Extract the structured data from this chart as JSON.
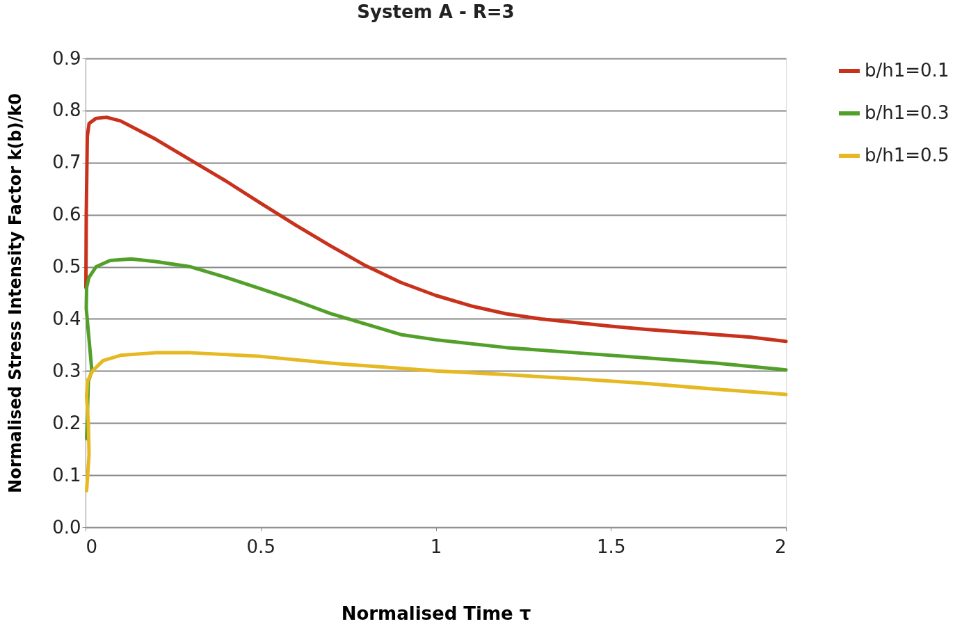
{
  "chart_data": {
    "type": "line",
    "title": "System A - R=3",
    "xlabel": "Normalised Time τ",
    "ylabel": "Normalised Stress Intensity Factor   k(b)/k0",
    "xlim": [
      0,
      2
    ],
    "xticks": [
      0,
      0.5,
      1,
      1.5,
      2
    ],
    "ylim": [
      0,
      0.9
    ],
    "yticks": [
      {
        "value": 0,
        "label": "0.0"
      },
      0.1,
      0.2,
      0.3,
      0.4,
      0.5,
      0.6,
      0.7,
      0.8,
      0.9
    ],
    "grid": "y",
    "legend": "right",
    "marker": "none",
    "line_style": "solid",
    "series": [
      {
        "name": "b/h1=0.1",
        "color": "#c8311b",
        "x": [
          0.001,
          0.002,
          0.005,
          0.01,
          0.03,
          0.06,
          0.1,
          0.2,
          0.3,
          0.4,
          0.5,
          0.6,
          0.7,
          0.8,
          0.9,
          1.0,
          1.1,
          1.2,
          1.3,
          1.4,
          1.5,
          1.6,
          1.7,
          1.8,
          1.9,
          2.0
        ],
        "values": [
          0.46,
          0.6,
          0.75,
          0.775,
          0.785,
          0.787,
          0.78,
          0.745,
          0.705,
          0.665,
          0.622,
          0.58,
          0.54,
          0.502,
          0.47,
          0.445,
          0.425,
          0.41,
          0.4,
          0.393,
          0.386,
          0.38,
          0.375,
          0.37,
          0.365,
          0.357
        ]
      },
      {
        "name": "b/h1=0.3",
        "color": "#52a02a",
        "x": [
          0.003,
          0.008,
          0.018,
          0.01,
          0.002,
          0.003,
          0.01,
          0.03,
          0.07,
          0.13,
          0.2,
          0.3,
          0.4,
          0.5,
          0.6,
          0.7,
          0.8,
          0.9,
          1.0,
          1.2,
          1.4,
          1.6,
          1.8,
          2.0
        ],
        "values": [
          0.17,
          0.28,
          0.3,
          0.36,
          0.42,
          0.46,
          0.48,
          0.5,
          0.512,
          0.515,
          0.51,
          0.5,
          0.48,
          0.458,
          0.435,
          0.41,
          0.39,
          0.37,
          0.36,
          0.345,
          0.335,
          0.325,
          0.315,
          0.302
        ]
      },
      {
        "name": "b/h1=0.5",
        "color": "#e6b821",
        "x": [
          0.003,
          0.006,
          0.01,
          0.008,
          0.003,
          0.005,
          0.02,
          0.05,
          0.1,
          0.2,
          0.3,
          0.5,
          0.7,
          0.9,
          1.0,
          1.2,
          1.4,
          1.6,
          1.8,
          2.0
        ],
        "values": [
          0.07,
          0.1,
          0.14,
          0.2,
          0.25,
          0.28,
          0.3,
          0.32,
          0.33,
          0.335,
          0.335,
          0.328,
          0.315,
          0.305,
          0.3,
          0.293,
          0.285,
          0.276,
          0.265,
          0.255
        ]
      }
    ]
  }
}
